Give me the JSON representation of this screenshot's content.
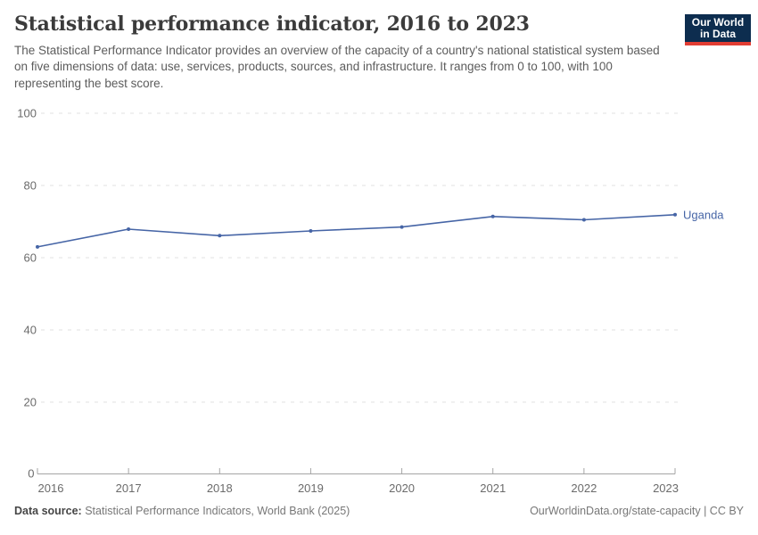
{
  "header": {
    "title": "Statistical performance indicator, 2016 to 2023",
    "subtitle": "The Statistical Performance Indicator provides an overview of the capacity of a country's national statistical system based on five dimensions of data: use, services, products, sources, and infrastructure. It ranges from 0 to 100, with 100 representing the best score."
  },
  "logo": {
    "line1": "Our World",
    "line2": "in Data",
    "bg_color": "#0d2d4f",
    "accent_color": "#e23d33"
  },
  "chart_data": {
    "type": "line",
    "title": "Statistical performance indicator, 2016 to 2023",
    "x": [
      2016,
      2017,
      2018,
      2019,
      2020,
      2021,
      2022,
      2023
    ],
    "series": [
      {
        "name": "Uganda",
        "color": "#4665a6",
        "values": [
          63.0,
          67.9,
          66.1,
          67.4,
          68.5,
          71.4,
          70.5,
          71.9
        ]
      }
    ],
    "xlabel": "",
    "ylabel": "",
    "xlim": [
      2016,
      2023
    ],
    "ylim": [
      0,
      100
    ],
    "yticks": [
      0,
      20,
      40,
      60,
      80,
      100
    ],
    "xticks": [
      2016,
      2017,
      2018,
      2019,
      2020,
      2021,
      2022,
      2023
    ],
    "grid": "horizontal-dashed",
    "legend_position": "end-of-line-label"
  },
  "footer": {
    "source_label": "Data source:",
    "source_value": " Statistical Performance Indicators, World Bank (2025)",
    "citation": "OurWorldinData.org/state-capacity | CC BY"
  },
  "colors": {
    "line": "#4665a6",
    "grid": "#e0e0e0",
    "axis": "#a5a5a5",
    "tick_label": "#6b6b6b",
    "title_text": "#3b3b3b",
    "subtitle_text": "#5c5c5c",
    "footer_text": "#777777"
  }
}
